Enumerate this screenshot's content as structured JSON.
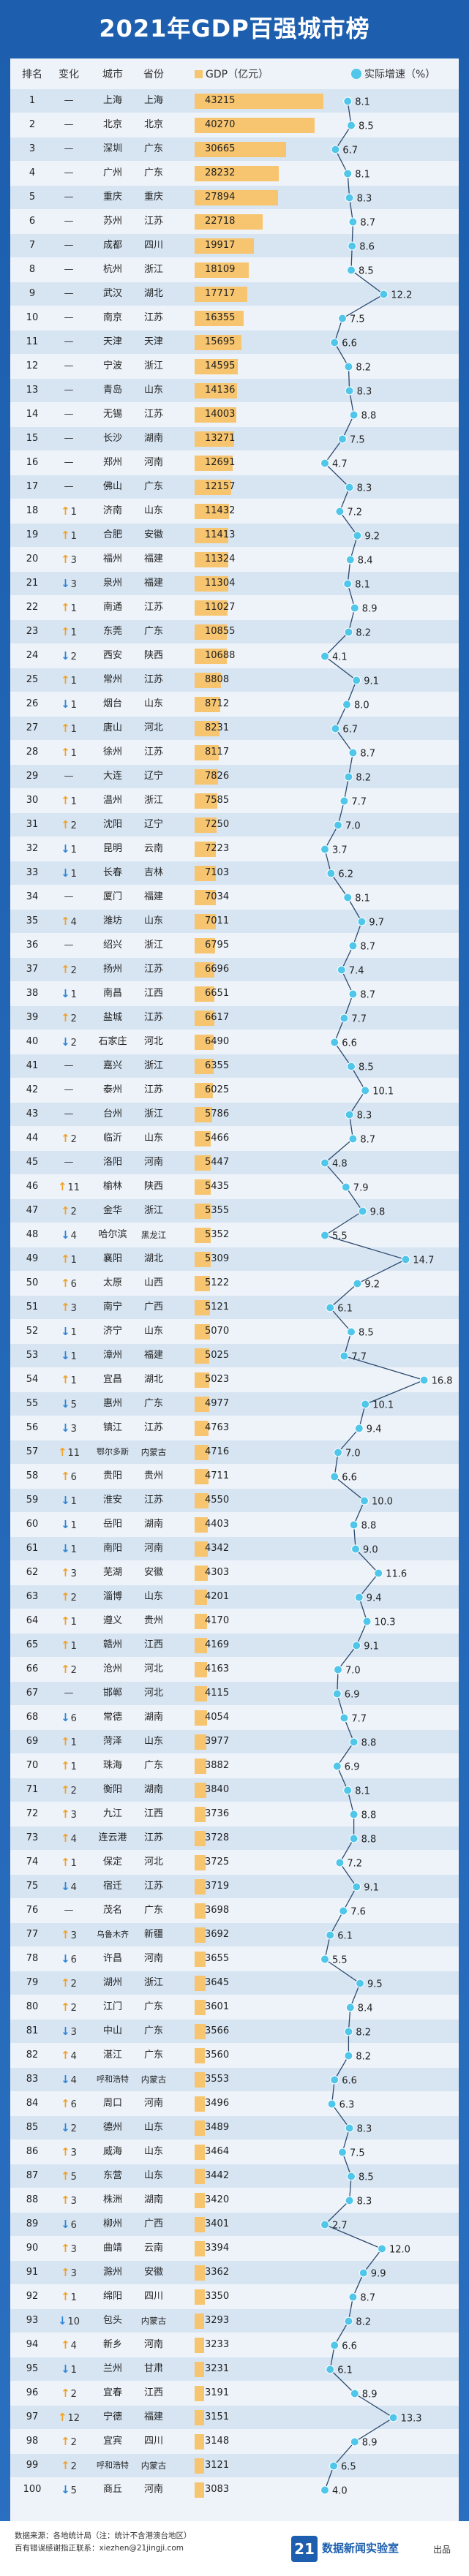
{
  "title": "2021年GDP百强城市榜",
  "headers": {
    "rank": "排名",
    "change": "变化",
    "city": "城市",
    "province": "省份",
    "gdp": "GDP（亿元）",
    "growth": "实际增速（%）"
  },
  "chart_data": {
    "type": "table",
    "title": "2021年GDP百强城市榜",
    "columns": [
      "排名",
      "变化",
      "城市",
      "省份",
      "GDP（亿元）",
      "实际增速（%）"
    ],
    "rows": [
      {
        "rank": "1",
        "dir": "—",
        "chg": "",
        "city": "上海",
        "prov": "上海",
        "gdp": 43215,
        "growth": 8.1
      },
      {
        "rank": "2",
        "dir": "—",
        "chg": "",
        "city": "北京",
        "prov": "北京",
        "gdp": 40270,
        "growth": 8.5
      },
      {
        "rank": "3",
        "dir": "—",
        "chg": "",
        "city": "深圳",
        "prov": "广东",
        "gdp": 30665,
        "growth": 6.7
      },
      {
        "rank": "4",
        "dir": "—",
        "chg": "",
        "city": "广州",
        "prov": "广东",
        "gdp": 28232,
        "growth": 8.1
      },
      {
        "rank": "5",
        "dir": "—",
        "chg": "",
        "city": "重庆",
        "prov": "重庆",
        "gdp": 27894,
        "growth": 8.3
      },
      {
        "rank": "6",
        "dir": "—",
        "chg": "",
        "city": "苏州",
        "prov": "江苏",
        "gdp": 22718,
        "growth": 8.7
      },
      {
        "rank": "7",
        "dir": "—",
        "chg": "",
        "city": "成都",
        "prov": "四川",
        "gdp": 19917,
        "growth": 8.6
      },
      {
        "rank": "8",
        "dir": "—",
        "chg": "",
        "city": "杭州",
        "prov": "浙江",
        "gdp": 18109,
        "growth": 8.5
      },
      {
        "rank": "9",
        "dir": "—",
        "chg": "",
        "city": "武汉",
        "prov": "湖北",
        "gdp": 17717,
        "growth": 12.2
      },
      {
        "rank": "10",
        "dir": "—",
        "chg": "",
        "city": "南京",
        "prov": "江苏",
        "gdp": 16355,
        "growth": 7.5
      },
      {
        "rank": "11",
        "dir": "—",
        "chg": "",
        "city": "天津",
        "prov": "天津",
        "gdp": 15695,
        "growth": 6.6
      },
      {
        "rank": "12",
        "dir": "—",
        "chg": "",
        "city": "宁波",
        "prov": "浙江",
        "gdp": 14595,
        "growth": 8.2
      },
      {
        "rank": "13",
        "dir": "—",
        "chg": "",
        "city": "青岛",
        "prov": "山东",
        "gdp": 14136,
        "growth": 8.3
      },
      {
        "rank": "14",
        "dir": "—",
        "chg": "",
        "city": "无锡",
        "prov": "江苏",
        "gdp": 14003,
        "growth": 8.8
      },
      {
        "rank": "15",
        "dir": "—",
        "chg": "",
        "city": "长沙",
        "prov": "湖南",
        "gdp": 13271,
        "growth": 7.5
      },
      {
        "rank": "16",
        "dir": "—",
        "chg": "",
        "city": "郑州",
        "prov": "河南",
        "gdp": 12691,
        "growth": 4.7
      },
      {
        "rank": "17",
        "dir": "—",
        "chg": "",
        "city": "佛山",
        "prov": "广东",
        "gdp": 12157,
        "growth": 8.3
      },
      {
        "rank": "18",
        "dir": "up",
        "chg": "1",
        "city": "济南",
        "prov": "山东",
        "gdp": 11432,
        "growth": 7.2
      },
      {
        "rank": "19",
        "dir": "up",
        "chg": "1",
        "city": "合肥",
        "prov": "安徽",
        "gdp": 11413,
        "growth": 9.2
      },
      {
        "rank": "20",
        "dir": "up",
        "chg": "3",
        "city": "福州",
        "prov": "福建",
        "gdp": 11324,
        "growth": 8.4
      },
      {
        "rank": "21",
        "dir": "dn",
        "chg": "3",
        "city": "泉州",
        "prov": "福建",
        "gdp": 11304,
        "growth": 8.1
      },
      {
        "rank": "22",
        "dir": "up",
        "chg": "1",
        "city": "南通",
        "prov": "江苏",
        "gdp": 11027,
        "growth": 8.9
      },
      {
        "rank": "23",
        "dir": "up",
        "chg": "1",
        "city": "东莞",
        "prov": "广东",
        "gdp": 10855,
        "growth": 8.2
      },
      {
        "rank": "24",
        "dir": "dn",
        "chg": "2",
        "city": "西安",
        "prov": "陕西",
        "gdp": 10688,
        "growth": 4.1
      },
      {
        "rank": "25",
        "dir": "up",
        "chg": "1",
        "city": "常州",
        "prov": "江苏",
        "gdp": 8808,
        "growth": 9.1
      },
      {
        "rank": "26",
        "dir": "dn",
        "chg": "1",
        "city": "烟台",
        "prov": "山东",
        "gdp": 8712,
        "growth": 8.0
      },
      {
        "rank": "27",
        "dir": "up",
        "chg": "1",
        "city": "唐山",
        "prov": "河北",
        "gdp": 8231,
        "growth": 6.7
      },
      {
        "rank": "28",
        "dir": "up",
        "chg": "1",
        "city": "徐州",
        "prov": "江苏",
        "gdp": 8117,
        "growth": 8.7
      },
      {
        "rank": "29",
        "dir": "—",
        "chg": "",
        "city": "大连",
        "prov": "辽宁",
        "gdp": 7826,
        "growth": 8.2
      },
      {
        "rank": "30",
        "dir": "up",
        "chg": "1",
        "city": "温州",
        "prov": "浙江",
        "gdp": 7585,
        "growth": 7.7
      },
      {
        "rank": "31",
        "dir": "up",
        "chg": "2",
        "city": "沈阳",
        "prov": "辽宁",
        "gdp": 7250,
        "growth": 7.0
      },
      {
        "rank": "32",
        "dir": "dn",
        "chg": "1",
        "city": "昆明",
        "prov": "云南",
        "gdp": 7223,
        "growth": 3.7
      },
      {
        "rank": "33",
        "dir": "dn",
        "chg": "1",
        "city": "长春",
        "prov": "吉林",
        "gdp": 7103,
        "growth": 6.2
      },
      {
        "rank": "34",
        "dir": "—",
        "chg": "",
        "city": "厦门",
        "prov": "福建",
        "gdp": 7034,
        "growth": 8.1
      },
      {
        "rank": "35",
        "dir": "up",
        "chg": "4",
        "city": "潍坊",
        "prov": "山东",
        "gdp": 7011,
        "growth": 9.7
      },
      {
        "rank": "36",
        "dir": "—",
        "chg": "",
        "city": "绍兴",
        "prov": "浙江",
        "gdp": 6795,
        "growth": 8.7
      },
      {
        "rank": "37",
        "dir": "up",
        "chg": "2",
        "city": "扬州",
        "prov": "江苏",
        "gdp": 6696,
        "growth": 7.4
      },
      {
        "rank": "38",
        "dir": "dn",
        "chg": "1",
        "city": "南昌",
        "prov": "江西",
        "gdp": 6651,
        "growth": 8.7
      },
      {
        "rank": "39",
        "dir": "up",
        "chg": "2",
        "city": "盐城",
        "prov": "江苏",
        "gdp": 6617,
        "growth": 7.7
      },
      {
        "rank": "40",
        "dir": "dn",
        "chg": "2",
        "city": "石家庄",
        "prov": "河北",
        "gdp": 6490,
        "growth": 6.6
      },
      {
        "rank": "41",
        "dir": "—",
        "chg": "",
        "city": "嘉兴",
        "prov": "浙江",
        "gdp": 6355,
        "growth": 8.5
      },
      {
        "rank": "42",
        "dir": "—",
        "chg": "",
        "city": "泰州",
        "prov": "江苏",
        "gdp": 6025,
        "growth": 10.1
      },
      {
        "rank": "43",
        "dir": "—",
        "chg": "",
        "city": "台州",
        "prov": "浙江",
        "gdp": 5786,
        "growth": 8.3
      },
      {
        "rank": "44",
        "dir": "up",
        "chg": "2",
        "city": "临沂",
        "prov": "山东",
        "gdp": 5466,
        "growth": 8.7
      },
      {
        "rank": "45",
        "dir": "—",
        "chg": "",
        "city": "洛阳",
        "prov": "河南",
        "gdp": 5447,
        "growth": 4.8
      },
      {
        "rank": "46",
        "dir": "up",
        "chg": "11",
        "city": "榆林",
        "prov": "陕西",
        "gdp": 5435,
        "growth": 7.9
      },
      {
        "rank": "47",
        "dir": "up",
        "chg": "2",
        "city": "金华",
        "prov": "浙江",
        "gdp": 5355,
        "growth": 9.8
      },
      {
        "rank": "48",
        "dir": "dn",
        "chg": "4",
        "city": "哈尔滨",
        "prov": "黑龙江",
        "gdp": 5352,
        "growth": 5.5
      },
      {
        "rank": "49",
        "dir": "up",
        "chg": "1",
        "city": "襄阳",
        "prov": "湖北",
        "gdp": 5309,
        "growth": 14.7
      },
      {
        "rank": "50",
        "dir": "up",
        "chg": "6",
        "city": "太原",
        "prov": "山西",
        "gdp": 5122,
        "growth": 9.2
      },
      {
        "rank": "51",
        "dir": "up",
        "chg": "3",
        "city": "南宁",
        "prov": "广西",
        "gdp": 5121,
        "growth": 6.1
      },
      {
        "rank": "52",
        "dir": "dn",
        "chg": "1",
        "city": "济宁",
        "prov": "山东",
        "gdp": 5070,
        "growth": 8.5
      },
      {
        "rank": "53",
        "dir": "dn",
        "chg": "1",
        "city": "漳州",
        "prov": "福建",
        "gdp": 5025,
        "growth": 7.7
      },
      {
        "rank": "54",
        "dir": "up",
        "chg": "1",
        "city": "宜昌",
        "prov": "湖北",
        "gdp": 5023,
        "growth": 16.8
      },
      {
        "rank": "55",
        "dir": "dn",
        "chg": "5",
        "city": "惠州",
        "prov": "广东",
        "gdp": 4977,
        "growth": 10.1
      },
      {
        "rank": "56",
        "dir": "dn",
        "chg": "3",
        "city": "镇江",
        "prov": "江苏",
        "gdp": 4763,
        "growth": 9.4
      },
      {
        "rank": "57",
        "dir": "up",
        "chg": "11",
        "city": "鄂尔多斯",
        "prov": "内蒙古",
        "gdp": 4716,
        "growth": 7.0
      },
      {
        "rank": "58",
        "dir": "up",
        "chg": "6",
        "city": "贵阳",
        "prov": "贵州",
        "gdp": 4711,
        "growth": 6.6
      },
      {
        "rank": "59",
        "dir": "dn",
        "chg": "1",
        "city": "淮安",
        "prov": "江苏",
        "gdp": 4550,
        "growth": 10.0
      },
      {
        "rank": "60",
        "dir": "dn",
        "chg": "1",
        "city": "岳阳",
        "prov": "湖南",
        "gdp": 4403,
        "growth": 8.8
      },
      {
        "rank": "61",
        "dir": "dn",
        "chg": "1",
        "city": "南阳",
        "prov": "河南",
        "gdp": 4342,
        "growth": 9.0
      },
      {
        "rank": "62",
        "dir": "up",
        "chg": "3",
        "city": "芜湖",
        "prov": "安徽",
        "gdp": 4303,
        "growth": 11.6
      },
      {
        "rank": "63",
        "dir": "up",
        "chg": "2",
        "city": "淄博",
        "prov": "山东",
        "gdp": 4201,
        "growth": 9.4
      },
      {
        "rank": "64",
        "dir": "up",
        "chg": "1",
        "city": "遵义",
        "prov": "贵州",
        "gdp": 4170,
        "growth": 10.3
      },
      {
        "rank": "65",
        "dir": "up",
        "chg": "1",
        "city": "赣州",
        "prov": "江西",
        "gdp": 4169,
        "growth": 9.1
      },
      {
        "rank": "66",
        "dir": "up",
        "chg": "2",
        "city": "沧州",
        "prov": "河北",
        "gdp": 4163,
        "growth": 7.0
      },
      {
        "rank": "67",
        "dir": "—",
        "chg": "",
        "city": "邯郸",
        "prov": "河北",
        "gdp": 4115,
        "growth": 6.9
      },
      {
        "rank": "68",
        "dir": "dn",
        "chg": "6",
        "city": "常德",
        "prov": "湖南",
        "gdp": 4054,
        "growth": 7.7
      },
      {
        "rank": "69",
        "dir": "up",
        "chg": "1",
        "city": "菏泽",
        "prov": "山东",
        "gdp": 3977,
        "growth": 8.8
      },
      {
        "rank": "70",
        "dir": "up",
        "chg": "1",
        "city": "珠海",
        "prov": "广东",
        "gdp": 3882,
        "growth": 6.9
      },
      {
        "rank": "71",
        "dir": "up",
        "chg": "2",
        "city": "衡阳",
        "prov": "湖南",
        "gdp": 3840,
        "growth": 8.1
      },
      {
        "rank": "72",
        "dir": "up",
        "chg": "3",
        "city": "九江",
        "prov": "江西",
        "gdp": 3736,
        "growth": 8.8
      },
      {
        "rank": "73",
        "dir": "up",
        "chg": "4",
        "city": "连云港",
        "prov": "江苏",
        "gdp": 3728,
        "growth": 8.8
      },
      {
        "rank": "74",
        "dir": "up",
        "chg": "1",
        "city": "保定",
        "prov": "河北",
        "gdp": 3725,
        "growth": 7.2
      },
      {
        "rank": "75",
        "dir": "dn",
        "chg": "4",
        "city": "宿迁",
        "prov": "江苏",
        "gdp": 3719,
        "growth": 9.1
      },
      {
        "rank": "76",
        "dir": "—",
        "chg": "",
        "city": "茂名",
        "prov": "广东",
        "gdp": 3698,
        "growth": 7.6
      },
      {
        "rank": "77",
        "dir": "up",
        "chg": "3",
        "city": "乌鲁木齐",
        "prov": "新疆",
        "gdp": 3692,
        "growth": 6.1
      },
      {
        "rank": "78",
        "dir": "dn",
        "chg": "6",
        "city": "许昌",
        "prov": "河南",
        "gdp": 3655,
        "growth": 5.5
      },
      {
        "rank": "79",
        "dir": "up",
        "chg": "2",
        "city": "湖州",
        "prov": "浙江",
        "gdp": 3645,
        "growth": 9.5
      },
      {
        "rank": "80",
        "dir": "up",
        "chg": "2",
        "city": "江门",
        "prov": "广东",
        "gdp": 3601,
        "growth": 8.4
      },
      {
        "rank": "81",
        "dir": "dn",
        "chg": "3",
        "city": "中山",
        "prov": "广东",
        "gdp": 3566,
        "growth": 8.2
      },
      {
        "rank": "82",
        "dir": "up",
        "chg": "4",
        "city": "湛江",
        "prov": "广东",
        "gdp": 3560,
        "growth": 8.2
      },
      {
        "rank": "83",
        "dir": "dn",
        "chg": "4",
        "city": "呼和浩特",
        "prov": "内蒙古",
        "gdp": 3553,
        "growth": 6.6
      },
      {
        "rank": "84",
        "dir": "up",
        "chg": "6",
        "city": "周口",
        "prov": "河南",
        "gdp": 3496,
        "growth": 6.3
      },
      {
        "rank": "85",
        "dir": "dn",
        "chg": "2",
        "city": "德州",
        "prov": "山东",
        "gdp": 3489,
        "growth": 8.3
      },
      {
        "rank": "86",
        "dir": "up",
        "chg": "3",
        "city": "威海",
        "prov": "山东",
        "gdp": 3464,
        "growth": 7.5
      },
      {
        "rank": "87",
        "dir": "up",
        "chg": "5",
        "city": "东营",
        "prov": "山东",
        "gdp": 3442,
        "growth": 8.5
      },
      {
        "rank": "88",
        "dir": "up",
        "chg": "3",
        "city": "株洲",
        "prov": "湖南",
        "gdp": 3420,
        "growth": 8.3
      },
      {
        "rank": "89",
        "dir": "dn",
        "chg": "6",
        "city": "柳州",
        "prov": "广西",
        "gdp": 3401,
        "growth": 2.7
      },
      {
        "rank": "90",
        "dir": "up",
        "chg": "3",
        "city": "曲靖",
        "prov": "云南",
        "gdp": 3394,
        "growth": 12.0
      },
      {
        "rank": "91",
        "dir": "up",
        "chg": "3",
        "city": "滁州",
        "prov": "安徽",
        "gdp": 3362,
        "growth": 9.9
      },
      {
        "rank": "92",
        "dir": "up",
        "chg": "1",
        "city": "绵阳",
        "prov": "四川",
        "gdp": 3350,
        "growth": 8.7
      },
      {
        "rank": "93",
        "dir": "dn",
        "chg": "10",
        "city": "包头",
        "prov": "内蒙古",
        "gdp": 3293,
        "growth": 8.2
      },
      {
        "rank": "94",
        "dir": "up",
        "chg": "4",
        "city": "新乡",
        "prov": "河南",
        "gdp": 3233,
        "growth": 6.6
      },
      {
        "rank": "95",
        "dir": "dn",
        "chg": "1",
        "city": "兰州",
        "prov": "甘肃",
        "gdp": 3231,
        "growth": 6.1
      },
      {
        "rank": "96",
        "dir": "up",
        "chg": "2",
        "city": "宜春",
        "prov": "江西",
        "gdp": 3191,
        "growth": 8.9
      },
      {
        "rank": "97",
        "dir": "up",
        "chg": "12",
        "city": "宁德",
        "prov": "福建",
        "gdp": 3151,
        "growth": 13.3
      },
      {
        "rank": "98",
        "dir": "up",
        "chg": "2",
        "city": "宜宾",
        "prov": "四川",
        "gdp": 3148,
        "growth": 8.9
      },
      {
        "rank": "99",
        "dir": "up",
        "chg": "2",
        "city": "呼和浩特",
        "prov": "内蒙古",
        "gdp": 3121,
        "growth": 6.5
      },
      {
        "rank": "100",
        "dir": "dn",
        "chg": "5",
        "city": "商丘",
        "prov": "河南",
        "gdp": 3083,
        "growth": 4.0
      }
    ]
  },
  "footer": {
    "source": "数据来源：各地统计局（注：统计不含港澳台地区）",
    "contact": "百有错误感谢指正联系：xiezhen@21jingji.com",
    "logo": "21",
    "brand": "数据新闻实验室",
    "out": "出品"
  },
  "colors": {
    "bg": "#1d5fae",
    "bar": "#f7c56f",
    "up": "#f2a227",
    "down": "#2f86d8",
    "line": "#2c4a6e",
    "dot": "#4fc6ea"
  }
}
